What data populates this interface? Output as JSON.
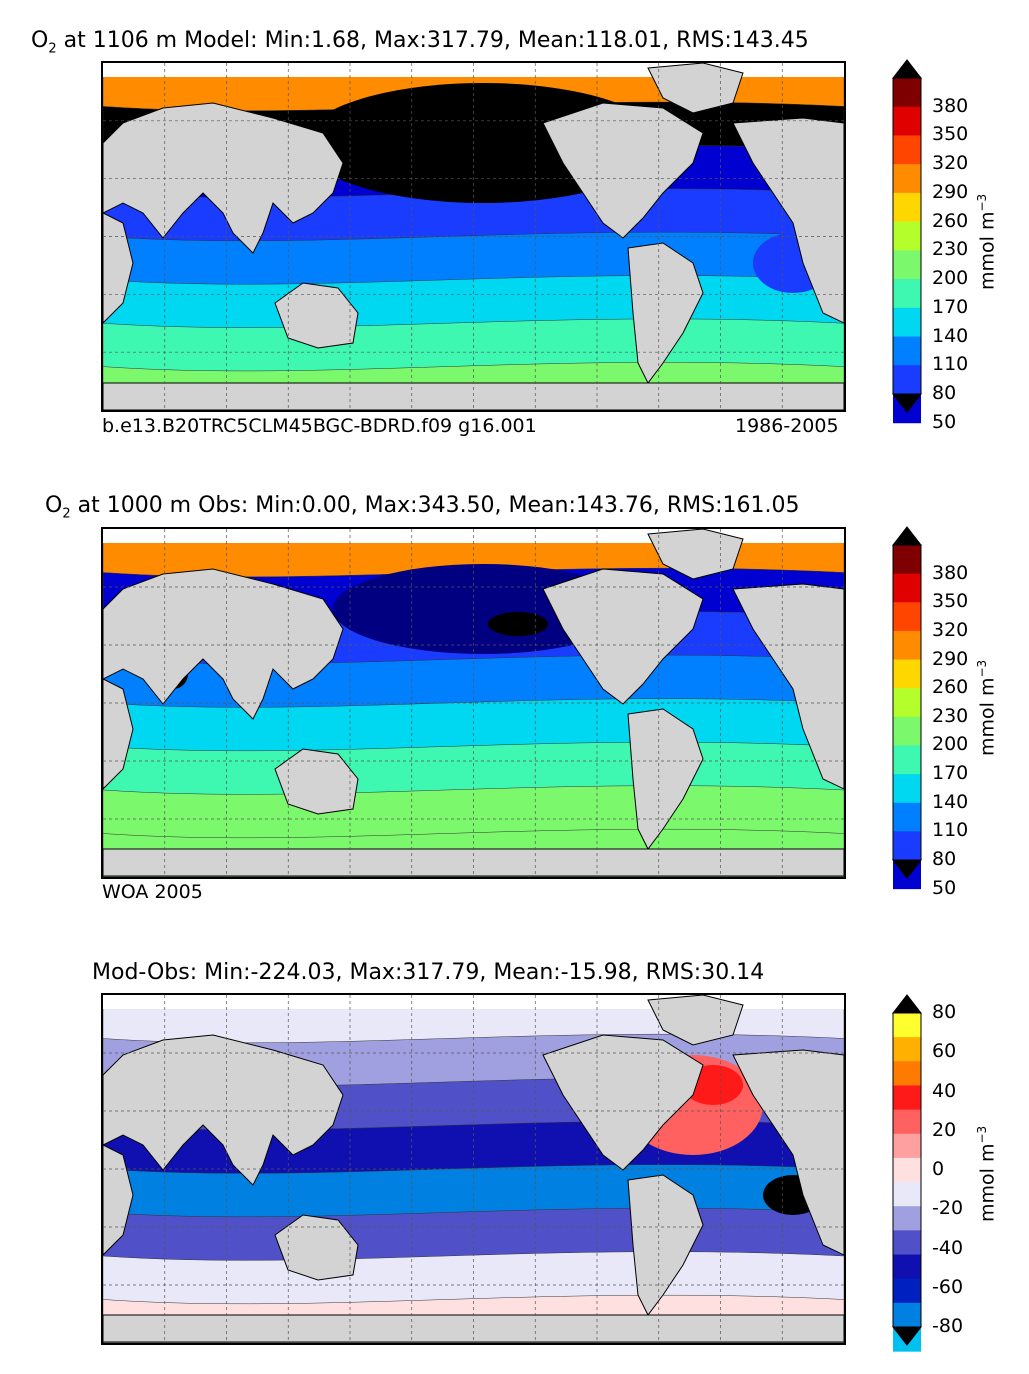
{
  "figure": {
    "panels": [
      {
        "id": "model",
        "title_prefix": "O",
        "title_sub": "2",
        "title_rest": " at 1106 m Model: Min:1.68, Max:317.79, Mean:118.01, RMS:143.45",
        "caption_left": "b.e13.B20TRC5CLM45BGC-BDRD.f09 g16.001",
        "caption_right": "1986-2005",
        "colorbar": {
          "unit": "mmol m",
          "unit_sup": "−3",
          "ticks": [
            "380",
            "350",
            "320",
            "290",
            "260",
            "230",
            "200",
            "170",
            "140",
            "110",
            "80",
            "50"
          ],
          "colors": [
            "#7f0000",
            "#e00000",
            "#ff4500",
            "#ff8c00",
            "#ffd700",
            "#b4ff2b",
            "#7cf86c",
            "#3ef7b0",
            "#00d8f2",
            "#0080ff",
            "#1a3cff",
            "#0000d0",
            "#000080"
          ]
        }
      },
      {
        "id": "obs",
        "title_prefix": "O",
        "title_sub": "2",
        "title_rest": " at 1000 m Obs: Min:0.00, Max:343.50, Mean:143.76, RMS:161.05",
        "caption_left": "WOA 2005",
        "caption_right": "",
        "colorbar": {
          "unit": "mmol m",
          "unit_sup": "−3",
          "ticks": [
            "380",
            "350",
            "320",
            "290",
            "260",
            "230",
            "200",
            "170",
            "140",
            "110",
            "80",
            "50"
          ],
          "colors": [
            "#7f0000",
            "#e00000",
            "#ff4500",
            "#ff8c00",
            "#ffd700",
            "#b4ff2b",
            "#7cf86c",
            "#3ef7b0",
            "#00d8f2",
            "#0080ff",
            "#1a3cff",
            "#0000d0",
            "#000080"
          ]
        }
      },
      {
        "id": "diff",
        "title_prefix": "",
        "title_sub": "",
        "title_rest": "Mod-Obs: Min:-224.03, Max:317.79, Mean:-15.98, RMS:30.14",
        "caption_left": "",
        "caption_right": "",
        "colorbar": {
          "unit": "mmol m",
          "unit_sup": "−3",
          "ticks": [
            "80",
            "60",
            "40",
            "20",
            "0",
            "-20",
            "-40",
            "-60",
            "-80"
          ],
          "colors": [
            "#ffff30",
            "#ffb000",
            "#ff7a00",
            "#ff1a1a",
            "#ff6060",
            "#ffa0a0",
            "#ffe0e0",
            "#e8e8f8",
            "#a0a0e0",
            "#5050c8",
            "#1010b0",
            "#0020c0",
            "#0080e0",
            "#00c0f0",
            "#00ffff"
          ]
        }
      }
    ]
  },
  "chart_data": [
    {
      "type": "heatmap",
      "title": "O2 at 1106 m Model: Min:1.68, Max:317.79, Mean:118.01, RMS:143.45",
      "stats": {
        "min": 1.68,
        "max": 317.79,
        "mean": 118.01,
        "rms": 143.45
      },
      "depth_m": 1106,
      "case": "b.e13.B20TRC5CLM45BGC-BDRD.f09 g16.001",
      "period": "1986-2005",
      "colorbar_levels": [
        50,
        80,
        110,
        140,
        170,
        200,
        230,
        260,
        290,
        320,
        350,
        380
      ],
      "colorbar_unit": "mmol m^-3",
      "colorbar_extend": "both",
      "grid": true
    },
    {
      "type": "heatmap",
      "title": "O2 at 1000 m Obs: Min:0.00, Max:343.50, Mean:143.76, RMS:161.05",
      "stats": {
        "min": 0.0,
        "max": 343.5,
        "mean": 143.76,
        "rms": 161.05
      },
      "depth_m": 1000,
      "source": "WOA 2005",
      "colorbar_levels": [
        50,
        80,
        110,
        140,
        170,
        200,
        230,
        260,
        290,
        320,
        350,
        380
      ],
      "colorbar_unit": "mmol m^-3",
      "colorbar_extend": "both",
      "grid": true
    },
    {
      "type": "heatmap",
      "title": "Mod-Obs: Min:-224.03, Max:317.79, Mean:-15.98, RMS:30.14",
      "stats": {
        "min": -224.03,
        "max": 317.79,
        "mean": -15.98,
        "rms": 30.14
      },
      "colorbar_levels": [
        -80,
        -60,
        -40,
        -20,
        0,
        20,
        40,
        60,
        80
      ],
      "colorbar_unit": "mmol m^-3",
      "colorbar_extend": "both",
      "grid": true
    }
  ]
}
